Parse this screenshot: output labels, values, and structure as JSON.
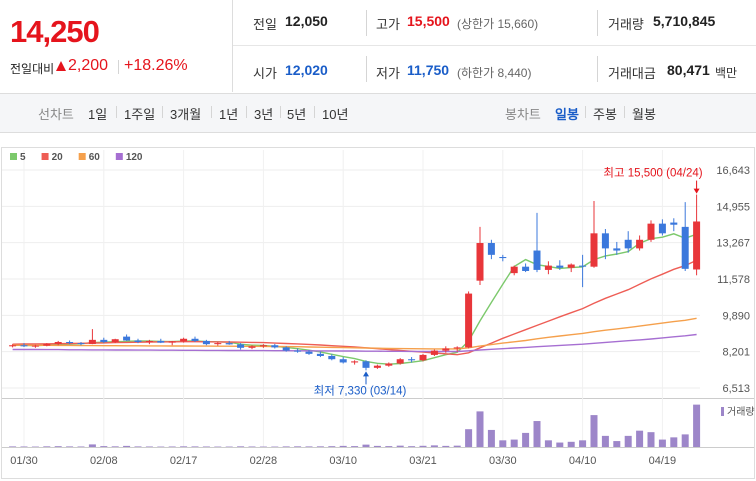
{
  "quote": {
    "price": "14,250",
    "change_label": "전일대비",
    "change": "2,200",
    "change_rate": "+18.26%"
  },
  "stats": [
    [
      {
        "label": "전일",
        "value": "12,050"
      },
      {
        "label": "고가",
        "value": "15,500",
        "note": "(상한가 15,660)"
      },
      {
        "label": "거래량",
        "value": "5,710,845"
      }
    ],
    [
      {
        "label": "시가",
        "value": "12,020"
      },
      {
        "label": "저가",
        "value": "11,750",
        "note": "(하한가 8,440)"
      },
      {
        "label": "거래대금",
        "value": "80,471",
        "unit": "백만"
      }
    ]
  ],
  "toolbar": {
    "line_chart": "선차트",
    "periods": [
      "1일",
      "1주일",
      "3개월",
      "1년",
      "3년",
      "5년",
      "10년"
    ],
    "candle_chart": "봉차트",
    "candle_periods": [
      "일봉",
      "주봉",
      "월봉"
    ]
  },
  "chart_data": {
    "type": "candlestick",
    "categories": [
      null,
      "01/30",
      null,
      null,
      null,
      null,
      null,
      null,
      "02/08",
      null,
      null,
      null,
      null,
      null,
      null,
      "02/17",
      null,
      null,
      null,
      null,
      null,
      null,
      "02/28",
      null,
      null,
      null,
      null,
      null,
      null,
      "03/10",
      null,
      null,
      null,
      null,
      null,
      null,
      "03/21",
      null,
      null,
      null,
      null,
      null,
      null,
      "03/30",
      null,
      null,
      null,
      null,
      null,
      null,
      "04/10",
      null,
      null,
      null,
      null,
      null,
      null,
      "04/19",
      null,
      null,
      null
    ],
    "open": [
      8450,
      8500,
      8450,
      8480,
      8560,
      8650,
      8600,
      8560,
      8750,
      8650,
      8900,
      8720,
      8650,
      8700,
      8620,
      8680,
      8800,
      8700,
      8550,
      8600,
      8540,
      8380,
      8450,
      8500,
      8400,
      8250,
      8200,
      8100,
      8000,
      7850,
      7700,
      7750,
      7450,
      7550,
      7650,
      7850,
      7800,
      8050,
      8250,
      8350,
      8400,
      11500,
      13250,
      12600,
      11850,
      12150,
      12900,
      12000,
      12200,
      12100,
      12200,
      12150,
      13700,
      13000,
      13400,
      13000,
      13400,
      14150,
      14200,
      14000,
      12020
    ],
    "high": [
      8550,
      8600,
      8520,
      8600,
      8700,
      8720,
      8650,
      9250,
      8850,
      8800,
      9000,
      8800,
      8750,
      8800,
      8700,
      8850,
      8900,
      8750,
      8650,
      8700,
      8600,
      8500,
      8550,
      8560,
      8450,
      8350,
      8280,
      8200,
      8080,
      7950,
      7800,
      7800,
      7600,
      7700,
      7900,
      7950,
      8100,
      8300,
      8450,
      8450,
      11000,
      14000,
      13400,
      12700,
      12200,
      12300,
      14650,
      12400,
      12450,
      12300,
      12700,
      15200,
      13900,
      13300,
      13800,
      13600,
      14300,
      14350,
      14400,
      15150,
      15500
    ],
    "low": [
      8400,
      8420,
      8380,
      8450,
      8500,
      8550,
      8500,
      8550,
      8600,
      8600,
      8700,
      8600,
      8550,
      8600,
      8500,
      8620,
      8650,
      8500,
      8480,
      8520,
      8300,
      8320,
      8380,
      8350,
      8200,
      8150,
      8050,
      7950,
      7800,
      7650,
      7600,
      7330,
      7400,
      7500,
      7600,
      7700,
      7750,
      8000,
      8150,
      8200,
      8350,
      11300,
      12500,
      12400,
      11750,
      11900,
      11900,
      11800,
      12000,
      11900,
      11200,
      12100,
      12500,
      12700,
      12800,
      12900,
      13300,
      13600,
      13800,
      11950,
      11750
    ],
    "close": [
      8500,
      8450,
      8480,
      8560,
      8650,
      8600,
      8560,
      8750,
      8650,
      8780,
      8720,
      8650,
      8700,
      8620,
      8680,
      8800,
      8700,
      8550,
      8600,
      8540,
      8380,
      8450,
      8500,
      8400,
      8250,
      8200,
      8100,
      8000,
      7850,
      7700,
      7750,
      7450,
      7550,
      7650,
      7850,
      7800,
      8050,
      8250,
      8350,
      8400,
      10900,
      13250,
      12700,
      12550,
      12150,
      11950,
      12000,
      12200,
      12100,
      12250,
      12150,
      13700,
      13000,
      12900,
      13000,
      13400,
      14150,
      13700,
      14100,
      12050,
      14250
    ],
    "up_color": "#e8363a",
    "down_color": "#3b78dc",
    "series": [
      {
        "name": "5",
        "color": "#7cc96c",
        "values": [
          8500,
          8490,
          8480,
          8500,
          8530,
          8550,
          8570,
          8620,
          8640,
          8670,
          8680,
          8700,
          8690,
          8680,
          8670,
          8690,
          8700,
          8670,
          8660,
          8640,
          8550,
          8500,
          8490,
          8450,
          8400,
          8340,
          8270,
          8190,
          8080,
          7970,
          7880,
          7750,
          7660,
          7620,
          7650,
          7710,
          7780,
          7920,
          8060,
          8170,
          8690,
          9630,
          10490,
          11330,
          12160,
          12480,
          12240,
          12160,
          12070,
          12110,
          12140,
          12480,
          12650,
          12740,
          12850,
          13240,
          13450,
          13520,
          13680,
          13470,
          13660
        ]
      },
      {
        "name": "20",
        "color": "#ee5d55",
        "values": [
          8550,
          8555,
          8560,
          8565,
          8570,
          8580,
          8590,
          8600,
          8610,
          8620,
          8630,
          8640,
          8650,
          8655,
          8660,
          8665,
          8665,
          8660,
          8655,
          8650,
          8640,
          8630,
          8620,
          8600,
          8580,
          8560,
          8540,
          8510,
          8480,
          8450,
          8420,
          8380,
          8340,
          8300,
          8260,
          8220,
          8180,
          8140,
          8100,
          8060,
          8150,
          8380,
          8600,
          8820,
          9020,
          9220,
          9420,
          9620,
          9820,
          10010,
          10200,
          10450,
          10680,
          10880,
          11080,
          11330,
          11580,
          11800,
          12030,
          12200,
          12450
        ]
      },
      {
        "name": "60",
        "color": "#f5a04c",
        "values": [
          8500,
          8500,
          8495,
          8495,
          8490,
          8490,
          8485,
          8485,
          8480,
          8480,
          8475,
          8475,
          8470,
          8470,
          8465,
          8465,
          8460,
          8460,
          8455,
          8455,
          8450,
          8450,
          8445,
          8440,
          8435,
          8430,
          8420,
          8410,
          8400,
          8390,
          8380,
          8370,
          8360,
          8350,
          8345,
          8340,
          8335,
          8330,
          8330,
          8330,
          8380,
          8460,
          8530,
          8600,
          8660,
          8720,
          8800,
          8870,
          8930,
          8990,
          9050,
          9130,
          9200,
          9260,
          9320,
          9390,
          9460,
          9530,
          9600,
          9660,
          9750
        ]
      },
      {
        "name": "120",
        "color": "#a66fd2",
        "values": [
          8300,
          8300,
          8300,
          8295,
          8295,
          8290,
          8290,
          8285,
          8285,
          8280,
          8280,
          8275,
          8275,
          8270,
          8270,
          8265,
          8265,
          8260,
          8260,
          8255,
          8255,
          8250,
          8250,
          8245,
          8245,
          8240,
          8240,
          8235,
          8235,
          8230,
          8230,
          8225,
          8225,
          8220,
          8220,
          8215,
          8215,
          8210,
          8210,
          8210,
          8240,
          8280,
          8310,
          8340,
          8370,
          8400,
          8430,
          8460,
          8490,
          8520,
          8550,
          8590,
          8630,
          8670,
          8710,
          8750,
          8790,
          8840,
          8890,
          8940,
          9000
        ]
      }
    ],
    "volume": {
      "name": "거래량",
      "color": "#9d86c9",
      "ylim": [
        0,
        6200000
      ],
      "values": [
        80000,
        70000,
        60000,
        90000,
        110000,
        80000,
        70000,
        350000,
        120000,
        90000,
        150000,
        80000,
        70000,
        60000,
        70000,
        90000,
        80000,
        70000,
        60000,
        60000,
        90000,
        70000,
        60000,
        60000,
        80000,
        90000,
        80000,
        90000,
        110000,
        150000,
        120000,
        320000,
        150000,
        120000,
        180000,
        110000,
        160000,
        220000,
        150000,
        180000,
        2400000,
        4800000,
        2300000,
        900000,
        1000000,
        1900000,
        3500000,
        900000,
        600000,
        700000,
        900000,
        4300000,
        1500000,
        800000,
        1500000,
        2200000,
        2000000,
        1000000,
        1300000,
        1700000,
        5710845
      ]
    },
    "ylim": [
      6048,
      17572
    ],
    "yticks": [
      {
        "value": 16643,
        "label": "16,643"
      },
      {
        "value": 14955,
        "label": "14,955"
      },
      {
        "value": 13267,
        "label": "13,267"
      },
      {
        "value": 11578,
        "label": "11,578"
      },
      {
        "value": 9890,
        "label": "9,890"
      },
      {
        "value": 8201,
        "label": "8,201"
      },
      {
        "value": 6513,
        "label": "6,513"
      }
    ],
    "grid": true,
    "annotations": [
      {
        "text": "최고 15,500 (04/24)",
        "color": "#e5141c"
      },
      {
        "text": "최저 7,330 (03/14)",
        "color": "#1a5dc8"
      }
    ]
  }
}
